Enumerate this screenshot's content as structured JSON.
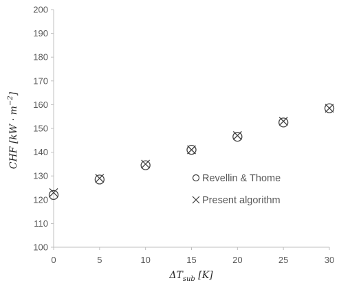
{
  "chart_data": {
    "type": "scatter",
    "x": [
      0,
      5,
      10,
      15,
      20,
      25,
      30
    ],
    "series": [
      {
        "name": "Revellin & Thome",
        "marker": "circle",
        "values": [
          122,
          128.5,
          134.5,
          141,
          146.5,
          152.5,
          158.5
        ]
      },
      {
        "name": "Present algorithm",
        "marker": "x",
        "values": [
          123,
          129,
          135,
          141,
          147,
          153,
          158.5
        ]
      }
    ],
    "xlabel": "ΔT_sub [K]",
    "ylabel": "CHF [kW·m^-2]",
    "xlim": [
      0,
      30
    ],
    "ylim": [
      100,
      200
    ],
    "xticks": [
      "0",
      "5",
      "10",
      "15",
      "20",
      "25",
      "30"
    ],
    "yticks": [
      "100",
      "110",
      "120",
      "130",
      "140",
      "150",
      "160",
      "170",
      "180",
      "190",
      "200"
    ],
    "grid": false,
    "legend_position": "inside-right",
    "colors": {
      "marker": "#404040",
      "axis": "#bfbfbf",
      "text": "#595959"
    }
  }
}
